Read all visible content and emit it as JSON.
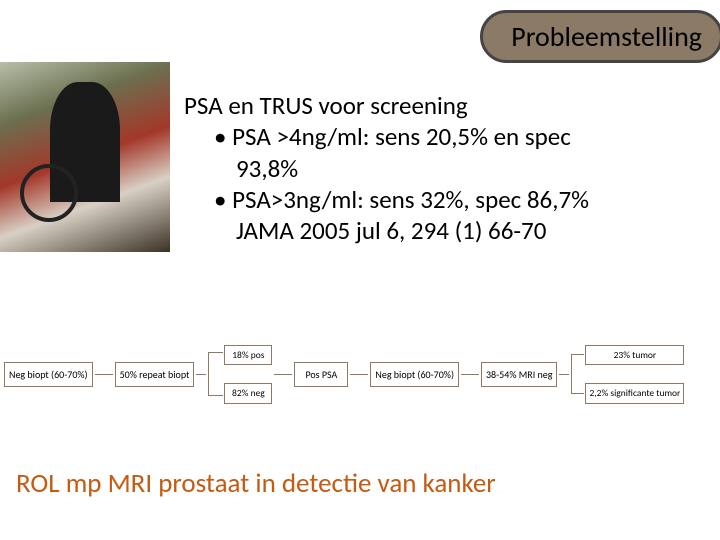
{
  "header": {
    "pill": "Probleemstelling"
  },
  "main": {
    "heading": "PSA en TRUS voor screening",
    "bullets": [
      {
        "line1": "PSA >4ng/ml: sens 20,5% en spec",
        "line2": "93,8%"
      },
      {
        "line1": "PSA>3ng/ml: sens 32%, spec 86,7%",
        "line2": "JAMA 2005 jul 6, 294 (1) 66-70"
      }
    ]
  },
  "flow": {
    "n1": "Neg biopt (60-70%)",
    "n2": "50% repeat biopt",
    "n3a": "18% pos",
    "n3b": "82% neg",
    "n4": "Pos PSA",
    "n5": "Neg biopt (60-70%)",
    "n6": "38-54% MRI neg",
    "n7a": "23% tumor",
    "n7b": "2,2% significante tumor"
  },
  "footer": {
    "title": "ROL mp MRI prostaat in detectie van kanker"
  },
  "colors": {
    "pill_bg": "#8a7a66",
    "pill_border": "#444444",
    "node_border": "#8a7a66",
    "footer_text": "#c55a11",
    "background": "#ffffff"
  }
}
